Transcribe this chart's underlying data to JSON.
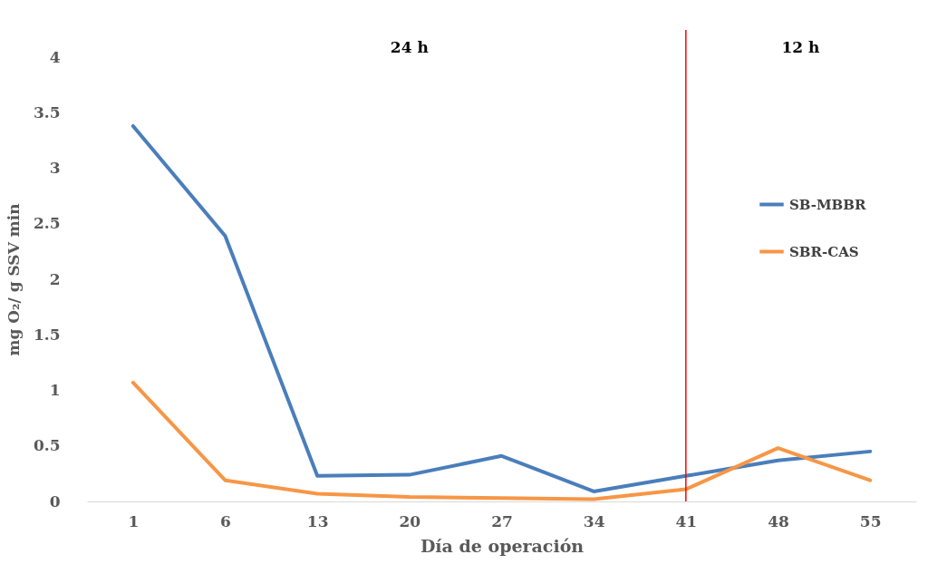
{
  "chart_data": {
    "type": "line",
    "xlabel": "Día de operación",
    "ylabel": "mg O₂/ g SSV min",
    "categories": [
      "1",
      "6",
      "13",
      "20",
      "27",
      "34",
      "41",
      "48",
      "55"
    ],
    "series": [
      {
        "name": "SB-MBBR",
        "color": "#4a7ebb",
        "values": [
          3.38,
          2.39,
          0.23,
          0.24,
          0.41,
          0.09,
          0.23,
          0.37,
          0.45
        ]
      },
      {
        "name": "SBR-CAS",
        "color": "#f79646",
        "values": [
          1.07,
          0.19,
          0.07,
          0.04,
          0.03,
          0.02,
          0.11,
          0.48,
          0.19
        ]
      }
    ],
    "ylim": [
      0,
      4
    ],
    "yticks": [
      0,
      0.5,
      1,
      1.5,
      2,
      2.5,
      3,
      3.5,
      4
    ],
    "ref_lines": [
      {
        "axis": "x",
        "value": "41",
        "color": "#ff0000"
      }
    ],
    "annotations": [
      "24 h",
      "12 h"
    ],
    "legend": "right",
    "marker": "none",
    "line_style": "solid",
    "grid": false
  }
}
